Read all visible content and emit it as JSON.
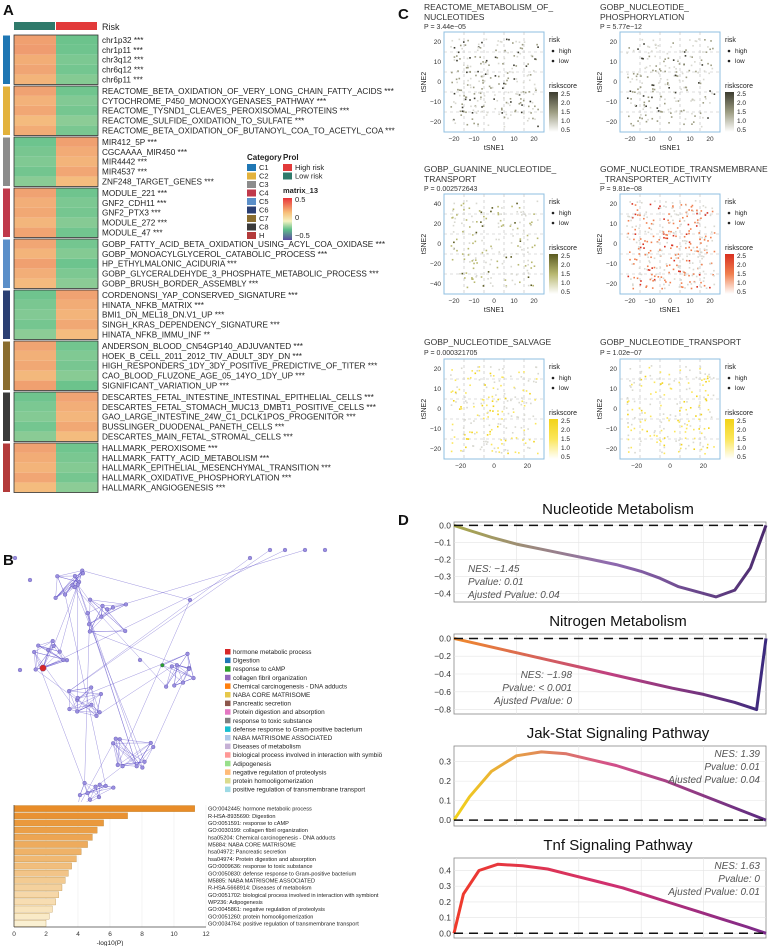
{
  "panels": {
    "a": "A",
    "b": "B",
    "c": "C",
    "d": "D"
  },
  "heatmap": {
    "header_label": "Risk",
    "header_colors": [
      "#2f7a6b",
      "#e23a3a"
    ],
    "groups": [
      {
        "color": "#1f77b4",
        "rows": [
          {
            "label": "chr1p32 ***",
            "low": "#f0a070",
            "high": "#6cc38c"
          },
          {
            "label": "chr1p11 ***",
            "low": "#ef9c70",
            "high": "#6fc48e"
          },
          {
            "label": "chr3q12 ***",
            "low": "#f2ad76",
            "high": "#7cc892"
          },
          {
            "label": "chr6q12 ***",
            "low": "#f0a574",
            "high": "#74c690"
          },
          {
            "label": "chr6p11 ***",
            "low": "#f3b47a",
            "high": "#85ca93"
          }
        ]
      },
      {
        "color": "#e3b23c",
        "rows": [
          {
            "label": "REACTOME_BETA_OXIDATION_OF_VERY_LONG_CHAIN_FATTY_ACIDS ***",
            "low": "#f0a272",
            "high": "#70c58e"
          },
          {
            "label": "CYTOCHROME_P450_MONOOXYGENASES_PATHWAY ***",
            "low": "#f3b27a",
            "high": "#82c994"
          },
          {
            "label": "REACTOME_TYSND1_CLEAVES_PEROXISOMAL_PROTEINS ***",
            "low": "#f1a774",
            "high": "#76c690"
          },
          {
            "label": "REACTOME_SULFIDE_OXIDATION_TO_SULFATE ***",
            "low": "#f4bb7e",
            "high": "#8ccc96"
          },
          {
            "label": "REACTOME_BETA_OXIDATION_OF_BUTANOYL_COA_TO_ACETYL_COA ***",
            "low": "#f2ac76",
            "high": "#7ac791"
          }
        ]
      },
      {
        "color": "#8c8c8c",
        "rows": [
          {
            "label": "MIR412_5P ***",
            "low": "#6dc48e",
            "high": "#f0a070"
          },
          {
            "label": "CGCAAAA_MIR450 ***",
            "low": "#78c690",
            "high": "#f2ab76"
          },
          {
            "label": "MIR4442 ***",
            "low": "#80c993",
            "high": "#f3b47a"
          },
          {
            "label": "MIR4537 ***",
            "low": "#73c58f",
            "high": "#f1a674"
          },
          {
            "label": "ZNF248_TARGET_GENES ***",
            "low": "#8acb95",
            "high": "#f4bc7e"
          }
        ]
      },
      {
        "color": "#c0394b",
        "rows": [
          {
            "label": "MODULE_221 ***",
            "low": "#f0a272",
            "high": "#6fc48e"
          },
          {
            "label": "GNF2_CDH11 ***",
            "low": "#f2ae78",
            "high": "#7cc892"
          },
          {
            "label": "GNF2_PTX3 ***",
            "low": "#f1a874",
            "high": "#76c690"
          },
          {
            "label": "MODULE_272 ***",
            "low": "#f3b67c",
            "high": "#86ca94"
          },
          {
            "label": "MODULE_47 ***",
            "low": "#f0a472",
            "high": "#72c58f"
          }
        ]
      },
      {
        "color": "#5b8fc9",
        "rows": [
          {
            "label": "GOBP_FATTY_ACID_BETA_OXIDATION_USING_ACYL_COA_OXIDASE ***",
            "low": "#f1a674",
            "high": "#74c690"
          },
          {
            "label": "GOBP_MONOACYLGLYCEROL_CATABOLIC_PROCESS ***",
            "low": "#f3b47a",
            "high": "#84ca93"
          },
          {
            "label": "HP_ETHYLMALONIC_ACIDURIA ***",
            "low": "#f0a070",
            "high": "#6dc48e"
          },
          {
            "label": "GOBP_GLYCERALDEHYDE_3_PHOSPHATE_METABOLIC_PROCESS ***",
            "low": "#f2ae78",
            "high": "#7dc892"
          },
          {
            "label": "GOBP_BRUSH_BORDER_ASSEMBLY ***",
            "low": "#f4ba7e",
            "high": "#8bcb95"
          }
        ]
      },
      {
        "color": "#2b3f73",
        "rows": [
          {
            "label": "CORDENONSI_YAP_CONSERVED_SIGNATURE ***",
            "low": "#6fc48e",
            "high": "#f0a272"
          },
          {
            "label": "HINATA_NFKB_MATRIX ***",
            "low": "#7ac791",
            "high": "#f2ac76"
          },
          {
            "label": "BMI1_DN_MEL18_DN.V1_UP ***",
            "low": "#82c994",
            "high": "#f3b47a"
          },
          {
            "label": "SINGH_KRAS_DEPENDENCY_SIGNATURE ***",
            "low": "#75c690",
            "high": "#f1a874"
          },
          {
            "label": "HINATA_NFKB_IMMU_INF **",
            "low": "#8ccc96",
            "high": "#f4bc7e"
          }
        ]
      },
      {
        "color": "#8a6d2f",
        "rows": [
          {
            "label": "ANDERSON_BLOOD_CN54GP140_ADJUVANTED ***",
            "low": "#f0a472",
            "high": "#72c58f"
          },
          {
            "label": "HOEK_B_CELL_2011_2012_TIV_ADULT_3DY_DN ***",
            "low": "#f2b078",
            "high": "#80c993"
          },
          {
            "label": "HIGH_RESPONDERS_1DY_3DY_POSITIVE_PREDICTIVE_OF_TITER ***",
            "low": "#f1a874",
            "high": "#78c691"
          },
          {
            "label": "CAO_BLOOD_FLUZONE_AGE_05_14YO_1DY_UP ***",
            "low": "#f3b87c",
            "high": "#88cb94"
          },
          {
            "label": "SIGNIFICANT_VARIATION_UP ***",
            "low": "#f0a070",
            "high": "#6cc38c"
          }
        ]
      },
      {
        "color": "#3a3a3a",
        "rows": [
          {
            "label": "DESCARTES_FETAL_INTESTINE_INTESTINAL_EPITHELIAL_CELLS ***",
            "low": "#6fc48e",
            "high": "#f1a474"
          },
          {
            "label": "DESCARTES_FETAL_STOMACH_MUC13_DMBT1_POSITIVE_CELLS ***",
            "low": "#7bc892",
            "high": "#f2ae78"
          },
          {
            "label": "GAO_LARGE_INTESTINE_24W_C1_DCLK1POS_PROGENITOR ***",
            "low": "#84ca94",
            "high": "#f3b67c"
          },
          {
            "label": "BUSSLINGER_DUODENAL_PANETH_CELLS ***",
            "low": "#74c690",
            "high": "#f1a874"
          },
          {
            "label": "DESCARTES_MAIN_FETAL_STROMAL_CELLS ***",
            "low": "#8acb95",
            "high": "#f4bc7e"
          }
        ]
      },
      {
        "color": "#b33a3a",
        "rows": [
          {
            "label": "HALLMARK_PEROXISOME ***",
            "low": "#f0a272",
            "high": "#70c58e"
          },
          {
            "label": "HALLMARK_FATTY_ACID_METABOLISM ***",
            "low": "#f2ac76",
            "high": "#7ac791"
          },
          {
            "label": "HALLMARK_EPITHELIAL_MESENCHYMAL_TRANSITION ***",
            "low": "#f3b47a",
            "high": "#84ca93"
          },
          {
            "label": "HALLMARK_OXIDATIVE_PHOSPHORYLATION ***",
            "low": "#f1a674",
            "high": "#76c690"
          },
          {
            "label": "HALLMARK_ANGIOGENESIS ***",
            "low": "#f4bc7e",
            "high": "#8ccc96"
          }
        ]
      }
    ],
    "legend": {
      "category_title": "Category",
      "categories": [
        {
          "name": "C1",
          "color": "#1f77b4"
        },
        {
          "name": "C2",
          "color": "#e3b23c"
        },
        {
          "name": "C3",
          "color": "#8c8c8c"
        },
        {
          "name": "C4",
          "color": "#c0394b"
        },
        {
          "name": "C5",
          "color": "#5b8fc9"
        },
        {
          "name": "C6",
          "color": "#2b3f73"
        },
        {
          "name": "C7",
          "color": "#8a6d2f"
        },
        {
          "name": "C8",
          "color": "#3a3a3a"
        },
        {
          "name": "H",
          "color": "#b33a3a"
        }
      ],
      "prol_title": "Prol",
      "prol": [
        {
          "name": "High risk",
          "color": "#e23a3a"
        },
        {
          "name": "Low risk",
          "color": "#2f7a6b"
        }
      ],
      "matrix_title": "matrix_13",
      "matrix_ticks": [
        "0.5",
        "0",
        "−0.5"
      ]
    }
  },
  "tsne_panels": [
    {
      "title": [
        "REACTOME_METABOLISM_OF_",
        "NUCLEOTIDES"
      ],
      "pvalue": "P = 3.44e−05",
      "scale": "gray",
      "n": 230,
      "seed": 11,
      "xticks": [
        "−20",
        "−10",
        "0",
        "10",
        "20"
      ],
      "yticks": [
        "20",
        "10",
        "0",
        "−10",
        "−20"
      ]
    },
    {
      "title": [
        "GOBP_NUCLEOTIDE_",
        "PHOSPHORYLATION"
      ],
      "pvalue": "P = 5.77e−12",
      "scale": "gray",
      "n": 200,
      "seed": 23,
      "xticks": [
        "−20",
        "−10",
        "0",
        "10",
        "20"
      ],
      "yticks": [
        "20",
        "10",
        "0",
        "−10",
        "−20"
      ]
    },
    {
      "title": [
        "GOBP_GUANINE_NUCLEOTIDE_",
        "TRANSPORT"
      ],
      "pvalue": "P = 0.002572643",
      "scale": "olive",
      "n": 160,
      "seed": 37,
      "xticks": [
        "−20",
        "−10",
        "0",
        "10",
        "20"
      ],
      "yticks": [
        "40",
        "20",
        "0",
        "−20",
        "−40"
      ]
    },
    {
      "title": [
        "GOMF_NUCLEOTIDE_TRANSMEMBRANE",
        "_TRANSPORTER_ACTIVITY"
      ],
      "pvalue": "P = 9.81e−08",
      "scale": "red",
      "n": 320,
      "seed": 41,
      "xticks": [
        "−20",
        "−10",
        "0",
        "10",
        "20"
      ],
      "yticks": [
        "20",
        "10",
        "0",
        "−10",
        "−20"
      ]
    },
    {
      "title": [
        "GOBP_NUCLEOTIDE_SALVAGE",
        ""
      ],
      "pvalue": "P = 0.000321705",
      "scale": "yellow",
      "n": 180,
      "seed": 53,
      "xticks": [
        "−20",
        "0",
        "20"
      ],
      "yticks": [
        "20",
        "10",
        "0",
        "−10",
        "−20"
      ]
    },
    {
      "title": [
        "GOBP_NUCLEOTIDE_TRANSPORT",
        ""
      ],
      "pvalue": "P = 1.02e−07",
      "scale": "yellow",
      "n": 170,
      "seed": 67,
      "xticks": [
        "−20",
        "0",
        "20"
      ],
      "yticks": [
        "20",
        "10",
        "0",
        "−10",
        "−20"
      ]
    }
  ],
  "tsne_common": {
    "xlabel": "tSNE1",
    "ylabel": "tSNE2",
    "risk_title": "risk",
    "risk_items": [
      "high",
      "low"
    ],
    "score_title": "riskscore",
    "score_ticks": [
      "2.5",
      "2.0",
      "1.5",
      "1.0",
      "0.5"
    ]
  },
  "chart_data": [
    {
      "type": "line",
      "title": "Nucleotide Metabolism",
      "nes": "NES: −1.45",
      "pvalue": "Pvalue: 0.01",
      "adj": "Ajusted Pvalue: 0.04",
      "ylim": [
        -0.45,
        0.02
      ],
      "yticks": [
        "0.0",
        "−0.1",
        "−0.2",
        "−0.3",
        "−0.4"
      ],
      "x": [
        0,
        0.05,
        0.12,
        0.2,
        0.28,
        0.36,
        0.44,
        0.52,
        0.6,
        0.66,
        0.72,
        0.78,
        0.84,
        0.9,
        0.95,
        1.0
      ],
      "y": [
        0,
        -0.03,
        -0.07,
        -0.11,
        -0.14,
        -0.17,
        -0.2,
        -0.23,
        -0.27,
        -0.31,
        -0.36,
        -0.39,
        -0.42,
        -0.38,
        -0.25,
        0
      ],
      "colors": [
        "#a8a84a",
        "#8f6ab0",
        "#4b2a6e"
      ],
      "legend_pos": "bottom-left"
    },
    {
      "type": "line",
      "title": "Nitrogen Metabolism",
      "nes": "NES: −1.98",
      "pvalue": "Pvalue: < 0.001",
      "adj": "Ajusted Pvalue: 0",
      "ylim": [
        -0.85,
        0.05
      ],
      "yticks": [
        "0.0",
        "−0.2",
        "−0.4",
        "−0.6",
        "−0.8"
      ],
      "x": [
        0,
        0.1,
        0.2,
        0.3,
        0.4,
        0.5,
        0.6,
        0.7,
        0.8,
        0.9,
        0.97,
        1.0
      ],
      "y": [
        0,
        -0.08,
        -0.16,
        -0.24,
        -0.32,
        -0.4,
        -0.48,
        -0.56,
        -0.63,
        -0.72,
        -0.8,
        0
      ],
      "colors": [
        "#f08a2c",
        "#c04080",
        "#3a2a7e"
      ],
      "legend_pos": "middle"
    },
    {
      "type": "line",
      "title": "Jak-Stat Signaling Pathway",
      "nes": "NES: 1.39",
      "pvalue": "Pvalue: 0.01",
      "adj": "Ajusted Pvalue: 0.04",
      "ylim": [
        -0.03,
        0.38
      ],
      "yticks": [
        "0.3",
        "0.2",
        "0.1",
        "0.0"
      ],
      "x": [
        0,
        0.05,
        0.12,
        0.2,
        0.28,
        0.36,
        0.44,
        0.52,
        0.6,
        0.68,
        0.76,
        0.84,
        0.92,
        1.0
      ],
      "y": [
        0,
        0.12,
        0.25,
        0.33,
        0.35,
        0.34,
        0.31,
        0.28,
        0.24,
        0.2,
        0.15,
        0.1,
        0.05,
        0
      ],
      "colors": [
        "#f2d318",
        "#d4508a",
        "#5a2a80"
      ],
      "legend_pos": "top-right"
    },
    {
      "type": "line",
      "title": "Tnf Signaling Pathway",
      "nes": "NES: 1.63",
      "pvalue": "Pvalue: 0",
      "adj": "Ajusted Pvalue: 0.01",
      "ylim": [
        -0.03,
        0.48
      ],
      "yticks": [
        "0.4",
        "0.3",
        "0.2",
        "0.1",
        "0.0"
      ],
      "x": [
        0,
        0.03,
        0.08,
        0.14,
        0.22,
        0.3,
        0.38,
        0.46,
        0.54,
        0.62,
        0.7,
        0.78,
        0.86,
        0.94,
        1.0
      ],
      "y": [
        0,
        0.25,
        0.4,
        0.44,
        0.43,
        0.41,
        0.37,
        0.33,
        0.29,
        0.24,
        0.19,
        0.14,
        0.09,
        0.04,
        0
      ],
      "colors": [
        "#f03a2a",
        "#d03070",
        "#7a2a8a"
      ],
      "legend_pos": "top-right"
    }
  ],
  "network": {
    "legend": [
      {
        "label": "hormone metabolic process",
        "color": "#d62728"
      },
      {
        "label": "Digestion",
        "color": "#1f77b4"
      },
      {
        "label": "response to cAMP",
        "color": "#2ca02c"
      },
      {
        "label": "collagen fibril organization",
        "color": "#9467bd"
      },
      {
        "label": "Chemical carcinogenesis - DNA adducts",
        "color": "#ff7f0e"
      },
      {
        "label": "NABA CORE MATRISOME",
        "color": "#e6c84a"
      },
      {
        "label": "Pancreatic secretion",
        "color": "#8c564b"
      },
      {
        "label": "Protein digestion and absorption",
        "color": "#e377c2"
      },
      {
        "label": "response to toxic substance",
        "color": "#7f7f7f"
      },
      {
        "label": "defense response to Gram-positive bacterium",
        "color": "#17becf"
      },
      {
        "label": "NABA MATRISOME ASSOCIATED",
        "color": "#aec7e8"
      },
      {
        "label": "Diseases of metabolism",
        "color": "#c5b0d5"
      },
      {
        "label": "biological process involved in interaction with symbiö",
        "color": "#ff9896"
      },
      {
        "label": "Adipogenesis",
        "color": "#98df8a"
      },
      {
        "label": "negative regulation of proteolysis",
        "color": "#ffbb78"
      },
      {
        "label": "protein homooligomerization",
        "color": "#dbdb8d"
      },
      {
        "label": "positive regulation of transmembrane transport",
        "color": "#9edae5"
      }
    ]
  },
  "bar_data": {
    "xlabel": "-log10(P)",
    "xticks": [
      "0",
      "2",
      "4",
      "6",
      "8",
      "10",
      "12"
    ],
    "items": [
      {
        "label": "GO:0042445: hormone metabolic process",
        "value": 11.3
      },
      {
        "label": "R-HSA-8935690: Digestion",
        "value": 7.1
      },
      {
        "label": "GO:0051591: response to cAMP",
        "value": 5.6
      },
      {
        "label": "GO:0030199: collagen fibril organization",
        "value": 5.2
      },
      {
        "label": "hsa05204: Chemical carcinogenesis - DNA adducts",
        "value": 4.9
      },
      {
        "label": "M5884: NABA CORE MATRISOME",
        "value": 4.6
      },
      {
        "label": "hsa04972: Pancreatic secretion",
        "value": 4.2
      },
      {
        "label": "hsa04974: Protein digestion and absorption",
        "value": 3.9
      },
      {
        "label": "GO:0009636: response to toxic substance",
        "value": 3.6
      },
      {
        "label": "GO:0050830: defense response to Gram-positive bacterium",
        "value": 3.4
      },
      {
        "label": "M5885: NABA MATRISOME ASSOCIATED",
        "value": 3.2
      },
      {
        "label": "R-HSA-5668914: Diseases of metabolism",
        "value": 3.0
      },
      {
        "label": "GO:0051702: biological process involved in interaction with symbiont",
        "value": 2.8
      },
      {
        "label": "WP236: Adipogenesis",
        "value": 2.6
      },
      {
        "label": "GO:0045861: negative regulation of proteolysis",
        "value": 2.4
      },
      {
        "label": "GO:0051260: protein homooligomerization",
        "value": 2.2
      },
      {
        "label": "GO:0034764: positive regulation of transmembrane transport",
        "value": 2.0
      }
    ]
  }
}
